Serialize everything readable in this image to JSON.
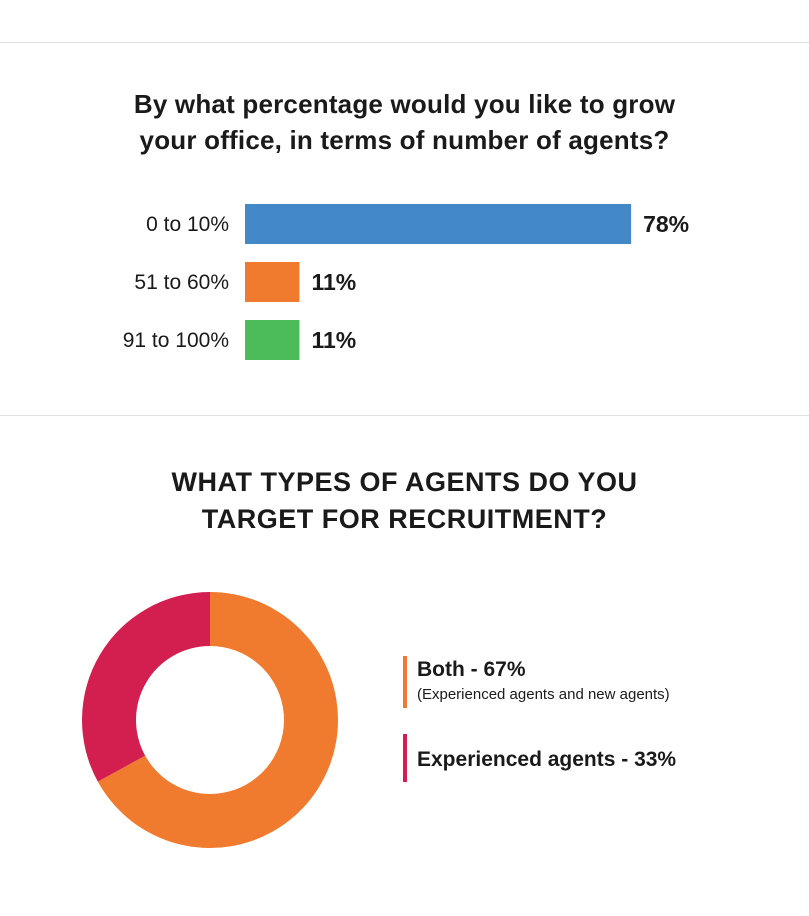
{
  "section1": {
    "title_line1": "By what percentage would you like to grow",
    "title_line2": "your office, in terms of number of agents?"
  },
  "section2": {
    "title_line1": "WHAT TYPES OF AGENTS DO YOU",
    "title_line2": "TARGET FOR RECRUITMENT?"
  },
  "chart_data": [
    {
      "type": "bar",
      "orientation": "horizontal",
      "title": "By what percentage would you like to grow your office, in terms of number of agents?",
      "categories": [
        "0 to 10%",
        "51 to 60%",
        "91 to 100%"
      ],
      "values": [
        78,
        11,
        11
      ],
      "value_labels": [
        "78%",
        "11%",
        "11%"
      ],
      "colors": [
        "#4389c9",
        "#f07a2e",
        "#4cbc5b"
      ],
      "xlim": [
        0,
        100
      ],
      "grid": false
    },
    {
      "type": "pie",
      "style": "donut",
      "title": "WHAT TYPES OF AGENTS DO YOU TARGET FOR RECRUITMENT?",
      "slices": [
        {
          "label": "Both - 67%",
          "note": "(Experienced agents and new agents)",
          "value": 67,
          "color": "#f07a2e"
        },
        {
          "label": "Experienced agents - 33%",
          "note": "",
          "value": 33,
          "color": "#d21f4f"
        }
      ],
      "legend": "right"
    }
  ]
}
